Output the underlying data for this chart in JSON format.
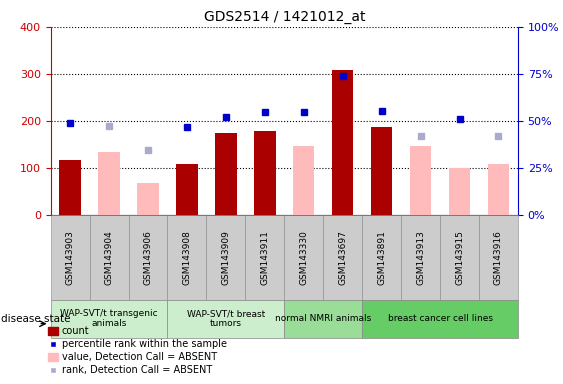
{
  "title": "GDS2514 / 1421012_at",
  "samples": [
    "GSM143903",
    "GSM143904",
    "GSM143906",
    "GSM143908",
    "GSM143909",
    "GSM143911",
    "GSM143330",
    "GSM143697",
    "GSM143891",
    "GSM143913",
    "GSM143915",
    "GSM143916"
  ],
  "count": [
    118,
    null,
    null,
    108,
    175,
    178,
    null,
    308,
    188,
    null,
    null,
    null
  ],
  "value_absent": [
    null,
    135,
    68,
    null,
    null,
    null,
    147,
    null,
    null,
    147,
    100,
    108
  ],
  "percentile_rank": [
    195,
    null,
    null,
    188,
    208,
    218,
    218,
    295,
    222,
    null,
    205,
    null
  ],
  "rank_absent": [
    null,
    190,
    138,
    null,
    null,
    null,
    null,
    null,
    null,
    168,
    null,
    168
  ],
  "group_labels": [
    "WAP-SVT/t transgenic\nanimals",
    "WAP-SVT/t breast\ntumors",
    "normal NMRI animals",
    "breast cancer cell lines"
  ],
  "group_starts": [
    0,
    3,
    6,
    8
  ],
  "group_ends": [
    3,
    6,
    8,
    12
  ],
  "group_colors": [
    "#cceecc",
    "#cceecc",
    "#99dd99",
    "#66cc66"
  ],
  "ylim_left": [
    0,
    400
  ],
  "ylim_right": [
    0,
    100
  ],
  "left_ticks": [
    0,
    100,
    200,
    300,
    400
  ],
  "right_ticks": [
    0,
    25,
    50,
    75,
    100
  ],
  "right_tick_labels": [
    "0%",
    "25%",
    "50%",
    "75%",
    "100%"
  ],
  "bar_color_count": "#aa0000",
  "bar_color_absent": "#ffbbbb",
  "dot_color_rank": "#0000cc",
  "dot_color_rank_absent": "#aaaacc",
  "ylabel_left_color": "#cc0000",
  "ylabel_right_color": "#0000cc",
  "tick_bg_color": "#cccccc",
  "legend_labels": [
    "count",
    "percentile rank within the sample",
    "value, Detection Call = ABSENT",
    "rank, Detection Call = ABSENT"
  ]
}
